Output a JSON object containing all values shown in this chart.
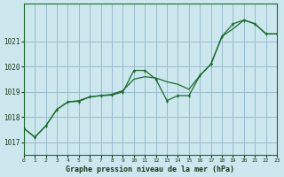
{
  "title": "Graphe pression niveau de la mer (hPa)",
  "bg_color": "#cce8ee",
  "grid_color": "#99bbcc",
  "line_color": "#1a6b2a",
  "xlim": [
    0,
    23
  ],
  "ylim": [
    1016.5,
    1022.5
  ],
  "yticks": [
    1017,
    1018,
    1019,
    1020,
    1021
  ],
  "xticks": [
    0,
    1,
    2,
    3,
    4,
    5,
    6,
    7,
    8,
    9,
    10,
    11,
    12,
    13,
    14,
    15,
    16,
    17,
    18,
    19,
    20,
    21,
    22,
    23
  ],
  "hours": [
    0,
    1,
    2,
    3,
    4,
    5,
    6,
    7,
    8,
    9,
    10,
    11,
    12,
    13,
    14,
    15,
    16,
    17,
    18,
    19,
    20,
    21,
    22,
    23
  ],
  "pressure_actual": [
    1017.55,
    1017.2,
    1017.65,
    1018.3,
    1018.6,
    1018.62,
    1018.8,
    1018.85,
    1018.87,
    1019.0,
    1019.85,
    1019.85,
    1019.5,
    1018.65,
    1018.85,
    1018.85,
    1019.65,
    1020.1,
    1021.2,
    1021.7,
    1021.85,
    1021.7,
    1021.3,
    1021.3
  ],
  "pressure_smooth": [
    1017.55,
    1017.2,
    1017.65,
    1018.3,
    1018.6,
    1018.65,
    1018.8,
    1018.85,
    1018.9,
    1019.05,
    1019.5,
    1019.6,
    1019.55,
    1019.4,
    1019.3,
    1019.1,
    1019.65,
    1020.1,
    1021.2,
    1021.5,
    1021.85,
    1021.7,
    1021.3,
    1021.3
  ]
}
